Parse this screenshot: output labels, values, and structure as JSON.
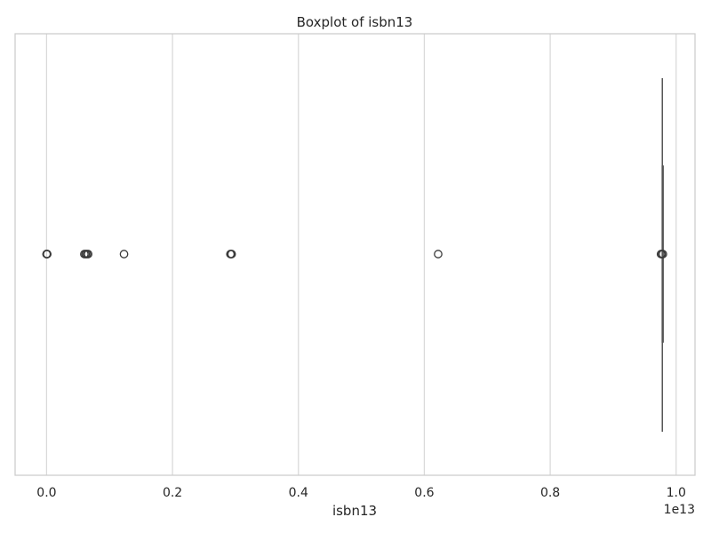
{
  "chart_data": {
    "type": "boxplot",
    "orientation": "horizontal",
    "title": "Boxplot of isbn13",
    "xlabel": "isbn13",
    "ylabel": "",
    "x_offset_label": "1e13",
    "xlim": [
      -0.05,
      1.03
    ],
    "xticks": [
      0.0,
      0.2,
      0.4,
      0.6,
      0.8,
      1.0
    ],
    "xtick_labels": [
      "0.0",
      "0.2",
      "0.4",
      "0.6",
      "0.8",
      "1.0"
    ],
    "grid": true,
    "style": {
      "box_color": "#555555",
      "grid_color": "#d9d9d9",
      "frame_color": "#cccccc"
    },
    "box": {
      "q1": 0.978,
      "median": 0.9781,
      "q3": 0.9782,
      "whisker_low": 0.9779,
      "whisker_high": 0.9785
    },
    "outliers": [
      0.0,
      0.0001,
      0.0004,
      0.0008,
      0.001,
      0.06,
      0.062,
      0.064,
      0.066,
      0.123,
      0.292,
      0.293,
      0.294,
      0.622,
      0.976,
      0.977,
      0.979
    ]
  }
}
